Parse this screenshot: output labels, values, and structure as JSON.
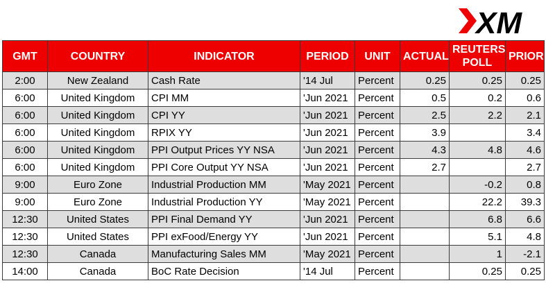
{
  "brand": {
    "logo_text": "XM",
    "accent": "#ee0000"
  },
  "columns": [
    "GMT",
    "COUNTRY",
    "INDICATOR",
    "PERIOD",
    "UNIT",
    "ACTUAL",
    "REUTERS\nPOLL",
    "PRIOR"
  ],
  "rows": [
    {
      "gmt": "2:00",
      "country": "New Zealand",
      "indicator": "Cash Rate",
      "period": "'14 Jul",
      "unit": "Percent",
      "actual": "0.25",
      "poll": "0.25",
      "prior": "0.25"
    },
    {
      "gmt": "6:00",
      "country": "United Kingdom",
      "indicator": "CPI MM",
      "period": "'Jun 2021",
      "unit": "Percent",
      "actual": "0.5",
      "poll": "0.2",
      "prior": "0.6"
    },
    {
      "gmt": "6:00",
      "country": "United Kingdom",
      "indicator": "CPI YY",
      "period": "'Jun 2021",
      "unit": "Percent",
      "actual": "2.5",
      "poll": "2.2",
      "prior": "2.1"
    },
    {
      "gmt": "6:00",
      "country": "United Kingdom",
      "indicator": "RPIX YY",
      "period": "'Jun 2021",
      "unit": "Percent",
      "actual": "3.9",
      "poll": "",
      "prior": "3.4"
    },
    {
      "gmt": "6:00",
      "country": "United Kingdom",
      "indicator": "PPI Output Prices YY NSA",
      "period": "'Jun 2021",
      "unit": "Percent",
      "actual": "4.3",
      "poll": "4.8",
      "prior": "4.6"
    },
    {
      "gmt": "6:00",
      "country": "United Kingdom",
      "indicator": "PPI Core Output YY NSA",
      "period": "'Jun 2021",
      "unit": "Percent",
      "actual": "2.7",
      "poll": "",
      "prior": "2.7"
    },
    {
      "gmt": "9:00",
      "country": "Euro Zone",
      "indicator": "Industrial Production MM",
      "period": "'May 2021",
      "unit": "Percent",
      "actual": "",
      "poll": "-0.2",
      "prior": "0.8"
    },
    {
      "gmt": "9:00",
      "country": "Euro Zone",
      "indicator": "Industrial Production YY",
      "period": "'May 2021",
      "unit": "Percent",
      "actual": "",
      "poll": "22.2",
      "prior": "39.3"
    },
    {
      "gmt": "12:30",
      "country": "United States",
      "indicator": "PPI Final Demand YY",
      "period": "'Jun 2021",
      "unit": "Percent",
      "actual": "",
      "poll": "6.8",
      "prior": "6.6"
    },
    {
      "gmt": "12:30",
      "country": "United States",
      "indicator": "PPI exFood/Energy YY",
      "period": "'Jun 2021",
      "unit": "Percent",
      "actual": "",
      "poll": "5.1",
      "prior": "4.8"
    },
    {
      "gmt": "12:30",
      "country": "Canada",
      "indicator": "Manufacturing Sales MM",
      "period": "'May 2021",
      "unit": "Percent",
      "actual": "",
      "poll": "1",
      "prior": "-2.1"
    },
    {
      "gmt": "14:00",
      "country": "Canada",
      "indicator": "BoC Rate Decision",
      "period": "'14 Jul",
      "unit": "Percent",
      "actual": "",
      "poll": "0.25",
      "prior": "0.25"
    }
  ]
}
